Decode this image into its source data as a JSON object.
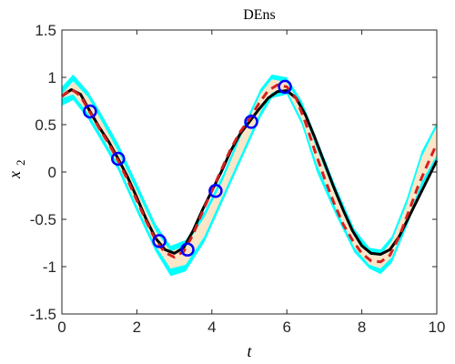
{
  "chart_data": {
    "type": "line",
    "title": "DEns",
    "xlabel": "t",
    "ylabel": {
      "main": "x",
      "sub": "2"
    },
    "xlim": [
      0,
      10
    ],
    "ylim": [
      -1.5,
      1.5
    ],
    "xticks": [
      0,
      2,
      4,
      6,
      8,
      10
    ],
    "yticks": [
      -1.5,
      -1,
      -0.5,
      0,
      0.5,
      1,
      1.5
    ],
    "ytick_labels": [
      "-1.5",
      "-1",
      "-0.5",
      "0",
      "0.5",
      "1",
      "1.5"
    ],
    "grid": false,
    "series": [
      {
        "kind": "band_outer",
        "color": "#00ffff",
        "x": [
          0,
          0.3,
          0.7,
          1.0,
          1.5,
          2.0,
          2.5,
          2.9,
          3.3,
          3.8,
          4.3,
          4.8,
          5.3,
          5.6,
          6.0,
          6.4,
          6.8,
          7.3,
          7.8,
          8.2,
          8.5,
          8.8,
          9.2,
          9.6,
          10.0
        ],
        "upper": [
          0.9,
          1.03,
          0.85,
          0.65,
          0.3,
          -0.12,
          -0.55,
          -0.78,
          -0.72,
          -0.42,
          -0.02,
          0.45,
          0.88,
          1.03,
          1.0,
          0.75,
          0.35,
          -0.15,
          -0.6,
          -0.8,
          -0.82,
          -0.68,
          -0.28,
          0.22,
          0.52
        ],
        "lower": [
          0.7,
          0.76,
          0.56,
          0.36,
          0.02,
          -0.42,
          -0.84,
          -1.1,
          -1.05,
          -0.74,
          -0.3,
          0.14,
          0.58,
          0.78,
          0.82,
          0.5,
          0.0,
          -0.45,
          -0.85,
          -1.02,
          -1.08,
          -0.96,
          -0.58,
          -0.16,
          0.12
        ]
      },
      {
        "kind": "band_inner",
        "color": "#fbe6c8",
        "x": [
          0,
          0.3,
          0.7,
          1.0,
          1.5,
          2.0,
          2.5,
          2.9,
          3.3,
          3.8,
          4.3,
          4.8,
          5.3,
          5.6,
          6.0,
          6.4,
          6.8,
          7.3,
          7.8,
          8.2,
          8.5,
          8.8,
          9.2,
          9.6,
          10.0
        ],
        "upper": [
          0.82,
          0.96,
          0.79,
          0.58,
          0.22,
          -0.2,
          -0.62,
          -0.84,
          -0.78,
          -0.48,
          -0.08,
          0.4,
          0.83,
          0.98,
          0.95,
          0.68,
          0.24,
          -0.25,
          -0.68,
          -0.87,
          -0.88,
          -0.73,
          -0.34,
          0.16,
          0.48
        ],
        "lower": [
          0.78,
          0.82,
          0.62,
          0.42,
          0.08,
          -0.36,
          -0.78,
          -1.02,
          -0.98,
          -0.68,
          -0.24,
          0.2,
          0.64,
          0.84,
          0.86,
          0.55,
          0.08,
          -0.38,
          -0.8,
          -0.98,
          -1.02,
          -0.9,
          -0.52,
          -0.1,
          0.18
        ]
      },
      {
        "kind": "line",
        "style": "solid",
        "color": "#000000",
        "x": [
          0,
          0.25,
          0.5,
          0.75,
          1.0,
          1.25,
          1.5,
          1.75,
          2.0,
          2.25,
          2.5,
          2.75,
          3.0,
          3.25,
          3.5,
          3.75,
          4.0,
          4.25,
          4.5,
          4.75,
          5.0,
          5.25,
          5.5,
          5.75,
          6.0,
          6.25,
          6.5,
          6.75,
          7.0,
          7.25,
          7.5,
          7.75,
          8.0,
          8.25,
          8.5,
          8.75,
          9.0,
          9.25,
          9.5,
          9.75,
          10.0
        ],
        "y": [
          0.8,
          0.87,
          0.82,
          0.64,
          0.47,
          0.32,
          0.14,
          -0.05,
          -0.27,
          -0.5,
          -0.7,
          -0.82,
          -0.86,
          -0.8,
          -0.62,
          -0.4,
          -0.2,
          0.0,
          0.22,
          0.4,
          0.53,
          0.66,
          0.78,
          0.85,
          0.86,
          0.78,
          0.6,
          0.36,
          0.1,
          -0.16,
          -0.4,
          -0.62,
          -0.78,
          -0.86,
          -0.87,
          -0.82,
          -0.68,
          -0.48,
          -0.28,
          -0.08,
          0.12
        ]
      },
      {
        "kind": "line",
        "style": "dashed",
        "color": "#d42020",
        "x": [
          0,
          0.25,
          0.5,
          0.75,
          1.0,
          1.25,
          1.5,
          1.75,
          2.0,
          2.25,
          2.5,
          2.75,
          3.0,
          3.25,
          3.5,
          3.75,
          4.0,
          4.25,
          4.5,
          4.75,
          5.0,
          5.25,
          5.5,
          5.75,
          6.0,
          6.25,
          6.5,
          6.75,
          7.0,
          7.25,
          7.5,
          7.75,
          8.0,
          8.25,
          8.5,
          8.75,
          9.0,
          9.25,
          9.5,
          9.75,
          10.0
        ],
        "y": [
          0.8,
          0.88,
          0.8,
          0.63,
          0.46,
          0.3,
          0.12,
          -0.08,
          -0.3,
          -0.52,
          -0.72,
          -0.85,
          -0.9,
          -0.84,
          -0.66,
          -0.42,
          -0.2,
          0.02,
          0.24,
          0.42,
          0.56,
          0.72,
          0.86,
          0.92,
          0.9,
          0.78,
          0.52,
          0.22,
          -0.06,
          -0.32,
          -0.55,
          -0.72,
          -0.86,
          -0.94,
          -0.95,
          -0.88,
          -0.68,
          -0.42,
          -0.15,
          0.08,
          0.3
        ]
      },
      {
        "kind": "markers",
        "marker": "circle",
        "color": "#0000ff",
        "x": [
          0.75,
          1.5,
          2.6,
          3.35,
          4.1,
          5.05,
          5.95
        ],
        "y": [
          0.64,
          0.14,
          -0.73,
          -0.82,
          -0.2,
          0.53,
          0.9
        ]
      }
    ]
  }
}
